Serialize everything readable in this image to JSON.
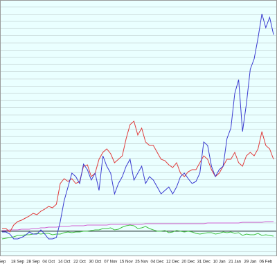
{
  "chart_data": {
    "type": "line",
    "categories": [
      "Sep",
      null,
      null,
      null,
      "18 Sep",
      null,
      null,
      null,
      "28 Sep",
      null,
      null,
      null,
      "04 Oct",
      null,
      null,
      null,
      "14 Oct",
      null,
      null,
      null,
      "22 Oct",
      null,
      null,
      null,
      "30 Oct",
      null,
      null,
      null,
      "07 Nov",
      null,
      null,
      null,
      "15 Nov",
      null,
      null,
      null,
      "25 Nov",
      null,
      null,
      null,
      "04 Dec",
      null,
      null,
      null,
      "12 Dec",
      null,
      null,
      null,
      "20 Dec",
      null,
      null,
      null,
      "31 Dec",
      null,
      null,
      null,
      "10 Jan",
      null,
      null,
      null,
      "21 Jan",
      null,
      null,
      null,
      "29 Jan",
      null,
      null,
      null,
      "06 Feb",
      null,
      null
    ],
    "series": [
      {
        "color": "#3a3ad0",
        "values": [
          35,
          35,
          32,
          25,
          25,
          27,
          30,
          35,
          32,
          32,
          38,
          32,
          25,
          25,
          27,
          50,
          80,
          100,
          120,
          115,
          105,
          133,
          125,
          110,
          120,
          95,
          145,
          130,
          120,
          90,
          105,
          115,
          130,
          140,
          110,
          120,
          130,
          105,
          115,
          110,
          100,
          90,
          95,
          100,
          90,
          100,
          115,
          120,
          112,
          105,
          108,
          120,
          165,
          160,
          130,
          115,
          125,
          130,
          170,
          185,
          235,
          255,
          180,
          220,
          270,
          285,
          315,
          350,
          330,
          345,
          320
        ]
      },
      {
        "color": "#e03a3a",
        "values": [
          40,
          40,
          35,
          45,
          50,
          52,
          55,
          58,
          62,
          60,
          65,
          68,
          72,
          70,
          75,
          105,
          112,
          108,
          112,
          105,
          108,
          130,
          132,
          115,
          120,
          140,
          150,
          155,
          148,
          135,
          140,
          145,
          170,
          190,
          195,
          175,
          185,
          165,
          160,
          160,
          150,
          140,
          138,
          132,
          128,
          135,
          120,
          115,
          122,
          125,
          125,
          135,
          145,
          140,
          125,
          115,
          120,
          130,
          140,
          140,
          150,
          135,
          130,
          145,
          150,
          145,
          155,
          180,
          160,
          155,
          140
        ]
      },
      {
        "color": "#d060d0",
        "values": [
          37,
          37,
          38,
          38,
          38,
          39,
          39,
          39,
          40,
          40,
          41,
          41,
          42,
          42,
          42,
          43,
          43,
          43,
          44,
          44,
          44,
          44,
          45,
          45,
          45,
          45,
          45,
          45,
          46,
          46,
          46,
          46,
          46,
          46,
          46,
          46,
          46,
          47,
          47,
          47,
          47,
          47,
          47,
          47,
          47,
          47,
          47,
          47,
          47,
          47,
          47,
          47,
          47,
          48,
          48,
          48,
          48,
          48,
          48,
          48,
          48,
          48,
          49,
          49,
          49,
          49,
          49,
          49,
          50,
          50,
          50
        ]
      },
      {
        "color": "#40c040",
        "values": [
          25,
          26,
          27,
          28,
          30,
          30,
          31,
          31,
          32,
          33,
          32,
          33,
          33,
          31,
          32,
          32,
          34,
          35,
          34,
          35,
          35,
          36,
          36,
          37,
          38,
          38,
          40,
          40,
          41,
          38,
          39,
          42,
          44,
          45,
          44,
          40,
          41,
          43,
          40,
          38,
          36,
          36,
          37,
          34,
          35,
          37,
          36,
          35,
          36,
          35,
          33,
          32,
          33,
          34,
          34,
          32,
          33,
          35,
          34,
          35,
          33,
          34,
          30,
          32,
          31,
          31,
          33,
          30,
          31,
          30,
          29
        ]
      }
    ],
    "hline": {
      "value": 36,
      "color": "#304040"
    },
    "ylim": [
      0,
      370
    ],
    "grid": true
  }
}
